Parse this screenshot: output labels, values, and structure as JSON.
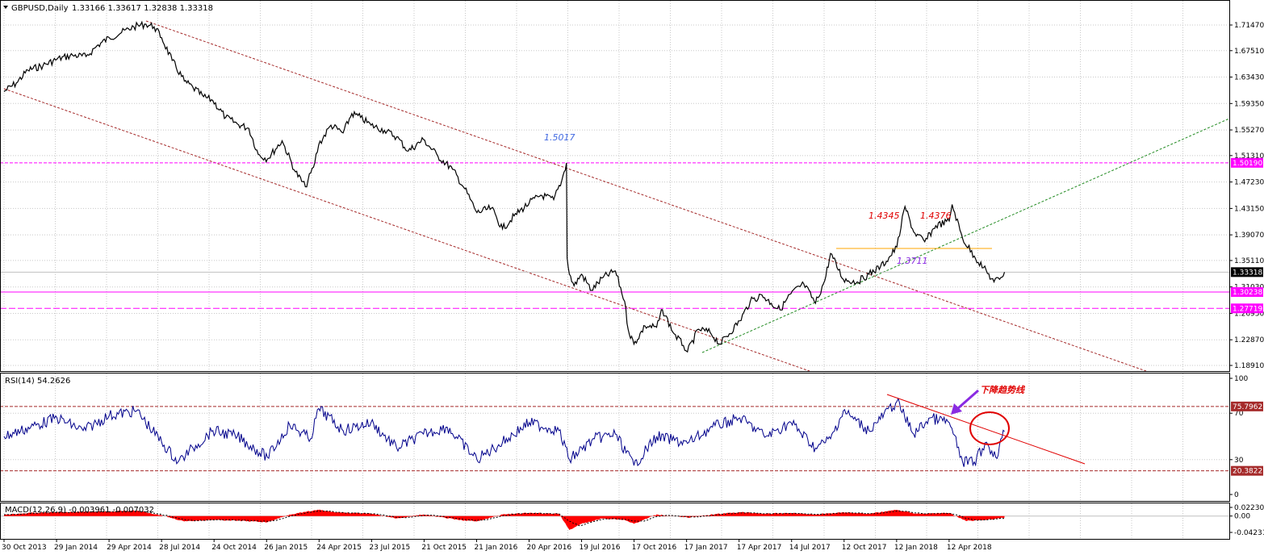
{
  "header": {
    "symbol_label": "GBPUSD,Daily",
    "ohlc": "1.33166 1.33617 1.32838 1.33318"
  },
  "colors": {
    "price": "#000000",
    "grid": "#c8c8c8",
    "channel": "#a52a2a",
    "support_green": "#228b22",
    "magenta": "#ff00ff",
    "orange_level": "#ffa500",
    "rsi_line": "#00008b",
    "rsi_levels": "#a52a2a",
    "trend_red": "#e00000",
    "macd_hist": "#ff0000",
    "annotation_red": "#e00000",
    "annotation_blue": "#4169e1",
    "annotation_purple": "#8a2be2"
  },
  "chart_data": [
    {
      "type": "line",
      "name": "price-panel",
      "x_labels": [
        "30 Oct 2013",
        "29 Jan 2014",
        "29 Apr 2014",
        "28 Jul 2014",
        "24 Oct 2014",
        "26 Jan 2015",
        "24 Apr 2015",
        "23 Jul 2015",
        "21 Oct 2015",
        "21 Jan 2016",
        "20 Apr 2016",
        "19 Jul 2016",
        "17 Oct 2016",
        "17 Jan 2017",
        "17 Apr 2017",
        "14 Jul 2017",
        "12 Oct 2017",
        "12 Jan 2018",
        "12 Apr 2018"
      ],
      "y_ticks": [
        "1.71470",
        "1.67510",
        "1.63430",
        "1.59350",
        "1.55270",
        "1.51310",
        "1.47230",
        "1.43150",
        "1.39070",
        "1.35110",
        "1.31030",
        "1.26950",
        "1.22870",
        "1.18910"
      ],
      "ylim": [
        1.1891,
        1.7147
      ],
      "last_price": "1.33318",
      "level_labels": [
        "1.50190",
        "1.30238",
        "1.27719"
      ],
      "levels": [
        1.5019,
        1.30238,
        1.27719
      ],
      "annotations": [
        "1.5017",
        "1.4345",
        "1.4376",
        "1.3711"
      ],
      "series": [
        {
          "x": [
            "2013-10-30",
            "2013-11-20",
            "2013-12-10",
            "2014-01-05",
            "2014-01-29",
            "2014-02-25",
            "2014-03-20",
            "2014-04-10",
            "2014-04-29",
            "2014-05-20",
            "2014-06-10",
            "2014-07-01",
            "2014-07-15",
            "2014-07-28",
            "2014-08-15",
            "2014-09-05",
            "2014-09-20",
            "2014-10-08",
            "2014-10-24",
            "2014-11-15",
            "2014-12-05",
            "2014-12-25",
            "2015-01-10",
            "2015-01-26",
            "2015-02-20",
            "2015-03-15",
            "2015-04-01",
            "2015-04-15",
            "2015-04-24",
            "2015-05-15",
            "2015-06-05",
            "2015-06-20",
            "2015-07-05",
            "2015-07-23",
            "2015-08-15",
            "2015-09-05",
            "2015-09-25",
            "2015-10-21",
            "2015-11-15",
            "2015-12-10",
            "2015-12-31",
            "2016-01-21",
            "2016-02-15",
            "2016-03-05",
            "2016-03-25",
            "2016-04-20",
            "2016-05-10",
            "2016-06-01",
            "2016-06-15",
            "2016-06-23",
            "2016-06-24",
            "2016-06-28",
            "2016-07-06",
            "2016-07-19",
            "2016-08-05",
            "2016-08-25",
            "2016-09-15",
            "2016-10-01",
            "2016-10-07",
            "2016-10-17",
            "2016-11-05",
            "2016-11-25",
            "2016-12-05",
            "2016-12-25",
            "2017-01-10",
            "2017-01-17",
            "2017-02-05",
            "2017-02-25",
            "2017-03-14",
            "2017-04-17",
            "2017-05-05",
            "2017-05-25",
            "2017-06-10",
            "2017-06-25",
            "2017-07-14",
            "2017-08-05",
            "2017-08-25",
            "2017-09-10",
            "2017-09-20",
            "2017-10-12",
            "2017-11-05",
            "2017-11-25",
            "2017-12-15",
            "2017-12-25",
            "2018-01-12",
            "2018-01-26",
            "2018-02-10",
            "2018-03-01",
            "2018-03-20",
            "2018-04-12",
            "2018-04-17",
            "2018-05-05",
            "2018-05-25",
            "2018-06-10",
            "2018-06-28",
            "2018-07-10",
            "2018-07-16"
          ],
          "y": [
            1.612,
            1.625,
            1.645,
            1.652,
            1.662,
            1.668,
            1.666,
            1.684,
            1.695,
            1.703,
            1.712,
            1.716,
            1.712,
            1.695,
            1.66,
            1.628,
            1.618,
            1.604,
            1.598,
            1.572,
            1.562,
            1.555,
            1.515,
            1.508,
            1.536,
            1.488,
            1.465,
            1.495,
            1.53,
            1.56,
            1.548,
            1.578,
            1.572,
            1.56,
            1.552,
            1.542,
            1.52,
            1.538,
            1.512,
            1.492,
            1.462,
            1.425,
            1.432,
            1.4,
            1.42,
            1.44,
            1.452,
            1.445,
            1.475,
            1.5017,
            1.355,
            1.33,
            1.312,
            1.33,
            1.305,
            1.325,
            1.335,
            1.288,
            1.245,
            1.222,
            1.25,
            1.248,
            1.275,
            1.238,
            1.22,
            1.21,
            1.245,
            1.24,
            1.222,
            1.258,
            1.288,
            1.298,
            1.285,
            1.275,
            1.3,
            1.315,
            1.285,
            1.32,
            1.362,
            1.322,
            1.318,
            1.33,
            1.342,
            1.35,
            1.372,
            1.4345,
            1.395,
            1.38,
            1.405,
            1.412,
            1.4376,
            1.385,
            1.358,
            1.34,
            1.318,
            1.325,
            1.3332
          ]
        }
      ]
    },
    {
      "type": "line",
      "name": "rsi-panel",
      "label": "RSI(14) 54.2626",
      "y_ticks": [
        "100",
        "70",
        "30",
        "0"
      ],
      "ylim": [
        0,
        100
      ],
      "levels": [
        75.7962,
        20.3822
      ],
      "level_labels": [
        "75.7962",
        "20.3822"
      ],
      "annotation": "下降趋势线",
      "series": [
        {
          "x": [
            "2013-10-30",
            "2013-12-15",
            "2014-01-29",
            "2014-03-15",
            "2014-04-29",
            "2014-06-15",
            "2014-07-28",
            "2014-08-25",
            "2014-09-20",
            "2014-10-24",
            "2014-12-05",
            "2015-01-26",
            "2015-03-05",
            "2015-04-10",
            "2015-04-24",
            "2015-06-05",
            "2015-07-23",
            "2015-09-05",
            "2015-10-21",
            "2015-12-01",
            "2016-01-21",
            "2016-03-05",
            "2016-04-20",
            "2016-06-10",
            "2016-06-28",
            "2016-08-10",
            "2016-09-15",
            "2016-10-17",
            "2016-11-25",
            "2017-01-17",
            "2017-03-01",
            "2017-04-17",
            "2017-06-01",
            "2017-07-14",
            "2017-08-25",
            "2017-09-20",
            "2017-10-12",
            "2017-11-25",
            "2018-01-12",
            "2018-02-10",
            "2018-03-10",
            "2018-04-12",
            "2018-05-05",
            "2018-05-25",
            "2018-06-15",
            "2018-07-01",
            "2018-07-16"
          ],
          "y": [
            50,
            58,
            66,
            55,
            68,
            72,
            45,
            28,
            40,
            55,
            50,
            32,
            60,
            48,
            74,
            55,
            62,
            40,
            52,
            58,
            30,
            45,
            62,
            55,
            30,
            48,
            52,
            25,
            50,
            44,
            58,
            66,
            50,
            62,
            40,
            48,
            72,
            55,
            80,
            52,
            66,
            62,
            28,
            28,
            45,
            32,
            54.26
          ]
        }
      ]
    },
    {
      "type": "bar",
      "name": "macd-panel",
      "label": "MACD(12,26,9) -0.003961 -0.007032",
      "y_ticks": [
        "0.022307",
        "0.00",
        "-0.042312"
      ],
      "ylim": [
        -0.042312,
        0.022307
      ],
      "series": [
        {
          "x": [
            "2013-10-30",
            "2013-12-15",
            "2014-01-29",
            "2014-03-15",
            "2014-04-29",
            "2014-06-15",
            "2014-07-28",
            "2014-09-05",
            "2014-10-24",
            "2014-12-05",
            "2015-01-26",
            "2015-03-05",
            "2015-04-24",
            "2015-05-20",
            "2015-07-23",
            "2015-09-05",
            "2015-10-21",
            "2015-12-20",
            "2016-01-21",
            "2016-03-05",
            "2016-04-20",
            "2016-06-10",
            "2016-06-28",
            "2016-07-19",
            "2016-08-25",
            "2016-10-01",
            "2016-10-17",
            "2016-11-25",
            "2017-01-17",
            "2017-03-01",
            "2017-04-17",
            "2017-06-01",
            "2017-07-14",
            "2017-08-25",
            "2017-10-12",
            "2017-11-25",
            "2018-01-12",
            "2018-02-15",
            "2018-04-12",
            "2018-05-10",
            "2018-06-15",
            "2018-07-16"
          ],
          "y": [
            0.004,
            0.008,
            0.01,
            0.011,
            0.012,
            0.014,
            0.002,
            -0.014,
            -0.01,
            -0.012,
            -0.016,
            0.004,
            0.016,
            0.01,
            0.006,
            -0.006,
            0.004,
            -0.01,
            -0.014,
            0.004,
            0.008,
            0.006,
            -0.036,
            -0.02,
            -0.006,
            -0.01,
            -0.02,
            0.004,
            -0.004,
            0.004,
            0.01,
            0.006,
            0.008,
            0.004,
            0.01,
            0.006,
            0.016,
            0.006,
            0.008,
            -0.012,
            -0.01,
            -0.004
          ]
        }
      ]
    }
  ]
}
